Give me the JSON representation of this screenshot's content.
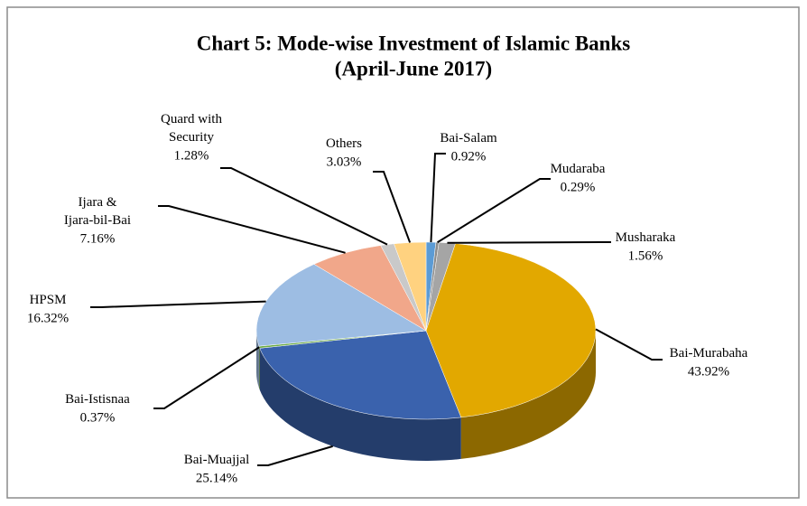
{
  "chart_data": {
    "type": "pie3d",
    "title": [
      "Chart 5: Mode-wise Investment of Islamic Banks",
      "(April-June 2017)"
    ],
    "categories": [
      "Bai-Salam",
      "Mudaraba",
      "Musharaka",
      "Bai-Murabaha",
      "Bai-Muajjal",
      "Bai-Istisnaa",
      "HPSM",
      "Ijara & Ijara-bil-Bai",
      "Quard with Security",
      "Others"
    ],
    "values": [
      0.92,
      0.29,
      1.56,
      43.92,
      25.14,
      0.37,
      16.32,
      7.16,
      1.28,
      3.03
    ],
    "value_labels": [
      "0.92%",
      "0.29%",
      "1.56%",
      "43.92%",
      "25.14%",
      "0.37%",
      "16.32%",
      "7.16%",
      "1.28%",
      "3.03%"
    ],
    "colors": [
      "#5b9bd5",
      "#8c8c8c",
      "#a5a5a5",
      "#e2a800",
      "#3a62ad",
      "#70ad47",
      "#9dbde3",
      "#f1a78a",
      "#c9c9c9",
      "#ffd280"
    ]
  }
}
